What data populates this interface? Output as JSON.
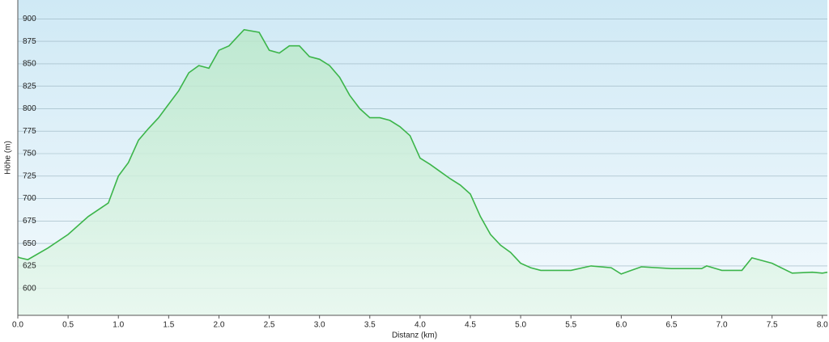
{
  "chart_data": {
    "type": "area",
    "x_label": "Distanz  (km)",
    "y_label": "Höhe (m)",
    "x": [
      0,
      0.02,
      0.1,
      0.3,
      0.5,
      0.7,
      0.9,
      1.0,
      1.1,
      1.2,
      1.3,
      1.4,
      1.5,
      1.6,
      1.7,
      1.8,
      1.9,
      2.0,
      2.1,
      2.2,
      2.25,
      2.4,
      2.5,
      2.6,
      2.7,
      2.8,
      2.9,
      3.0,
      3.1,
      3.2,
      3.3,
      3.4,
      3.5,
      3.6,
      3.7,
      3.8,
      3.9,
      4.0,
      4.1,
      4.2,
      4.3,
      4.4,
      4.5,
      4.6,
      4.7,
      4.8,
      4.9,
      5.0,
      5.1,
      5.2,
      5.5,
      5.7,
      5.9,
      6.0,
      6.1,
      6.2,
      6.5,
      6.8,
      6.85,
      7.0,
      7.2,
      7.3,
      7.5,
      7.7,
      7.9,
      8.0,
      8.05
    ],
    "series": [
      {
        "name": "Höhe",
        "color": "#3cb54a",
        "values": [
          635,
          634,
          632,
          645,
          660,
          680,
          695,
          725,
          740,
          765,
          778,
          790,
          805,
          820,
          840,
          848,
          845,
          865,
          870,
          882,
          888,
          885,
          865,
          862,
          870,
          870,
          858,
          855,
          848,
          835,
          815,
          800,
          790,
          790,
          787,
          780,
          770,
          745,
          738,
          730,
          722,
          715,
          705,
          680,
          660,
          648,
          640,
          628,
          623,
          620,
          620,
          625,
          623,
          616,
          620,
          624,
          622,
          622,
          625,
          620,
          620,
          634,
          628,
          617,
          618,
          617,
          618
        ]
      }
    ],
    "xlim": [
      0,
      8.05
    ],
    "ylim": [
      570,
      921
    ],
    "xticks": [
      {
        "value": 0,
        "label": "0.0"
      },
      0.5,
      {
        "value": 1,
        "label": "1.0"
      },
      1.5,
      {
        "value": 2,
        "label": "2.0"
      },
      2.5,
      {
        "value": 3,
        "label": "3.0"
      },
      3.5,
      {
        "value": 4,
        "label": "4.0"
      },
      4.5,
      {
        "value": 5,
        "label": "5.0"
      },
      5.5,
      {
        "value": 6,
        "label": "6.0"
      },
      6.5,
      {
        "value": 7,
        "label": "7.0"
      },
      7.5,
      {
        "value": 8,
        "label": "8.0"
      }
    ],
    "yticks": [
      600,
      625,
      650,
      675,
      700,
      725,
      750,
      775,
      800,
      825,
      850,
      875,
      900
    ],
    "grid": true
  }
}
